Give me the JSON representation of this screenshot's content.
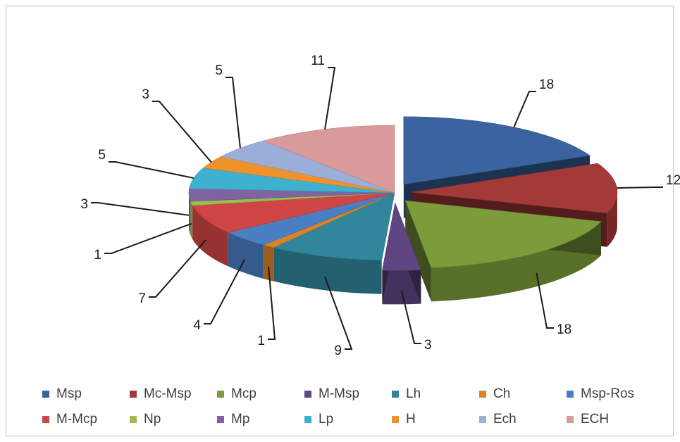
{
  "chart_data": {
    "type": "pie",
    "exploded": true,
    "three_d": true,
    "legend_position": "bottom",
    "categories": [
      "Msp",
      "Mc-Msp",
      "Mcp",
      "M-Msp",
      "Lh",
      "Ch",
      "Msp-Ros",
      "M-Mcp",
      "Np",
      "Mp",
      "Lp",
      "H",
      "Ech",
      "ECH"
    ],
    "values": [
      18,
      12,
      18,
      3,
      9,
      1,
      4,
      7,
      1,
      3,
      5,
      3,
      5,
      11
    ],
    "colors": [
      "#3a639f",
      "#a33a37",
      "#7c9b3b",
      "#5f4583",
      "#31869b",
      "#d8822a",
      "#4a7fc4",
      "#cf4545",
      "#9bbc4f",
      "#8064a2",
      "#3db1cf",
      "#f0922b",
      "#9aafd8",
      "#d89a9a"
    ],
    "labels": [
      "18",
      "12",
      "18",
      "3",
      "9",
      "1",
      "4",
      "7",
      "1",
      "3",
      "5",
      "3",
      "5",
      "11"
    ]
  }
}
